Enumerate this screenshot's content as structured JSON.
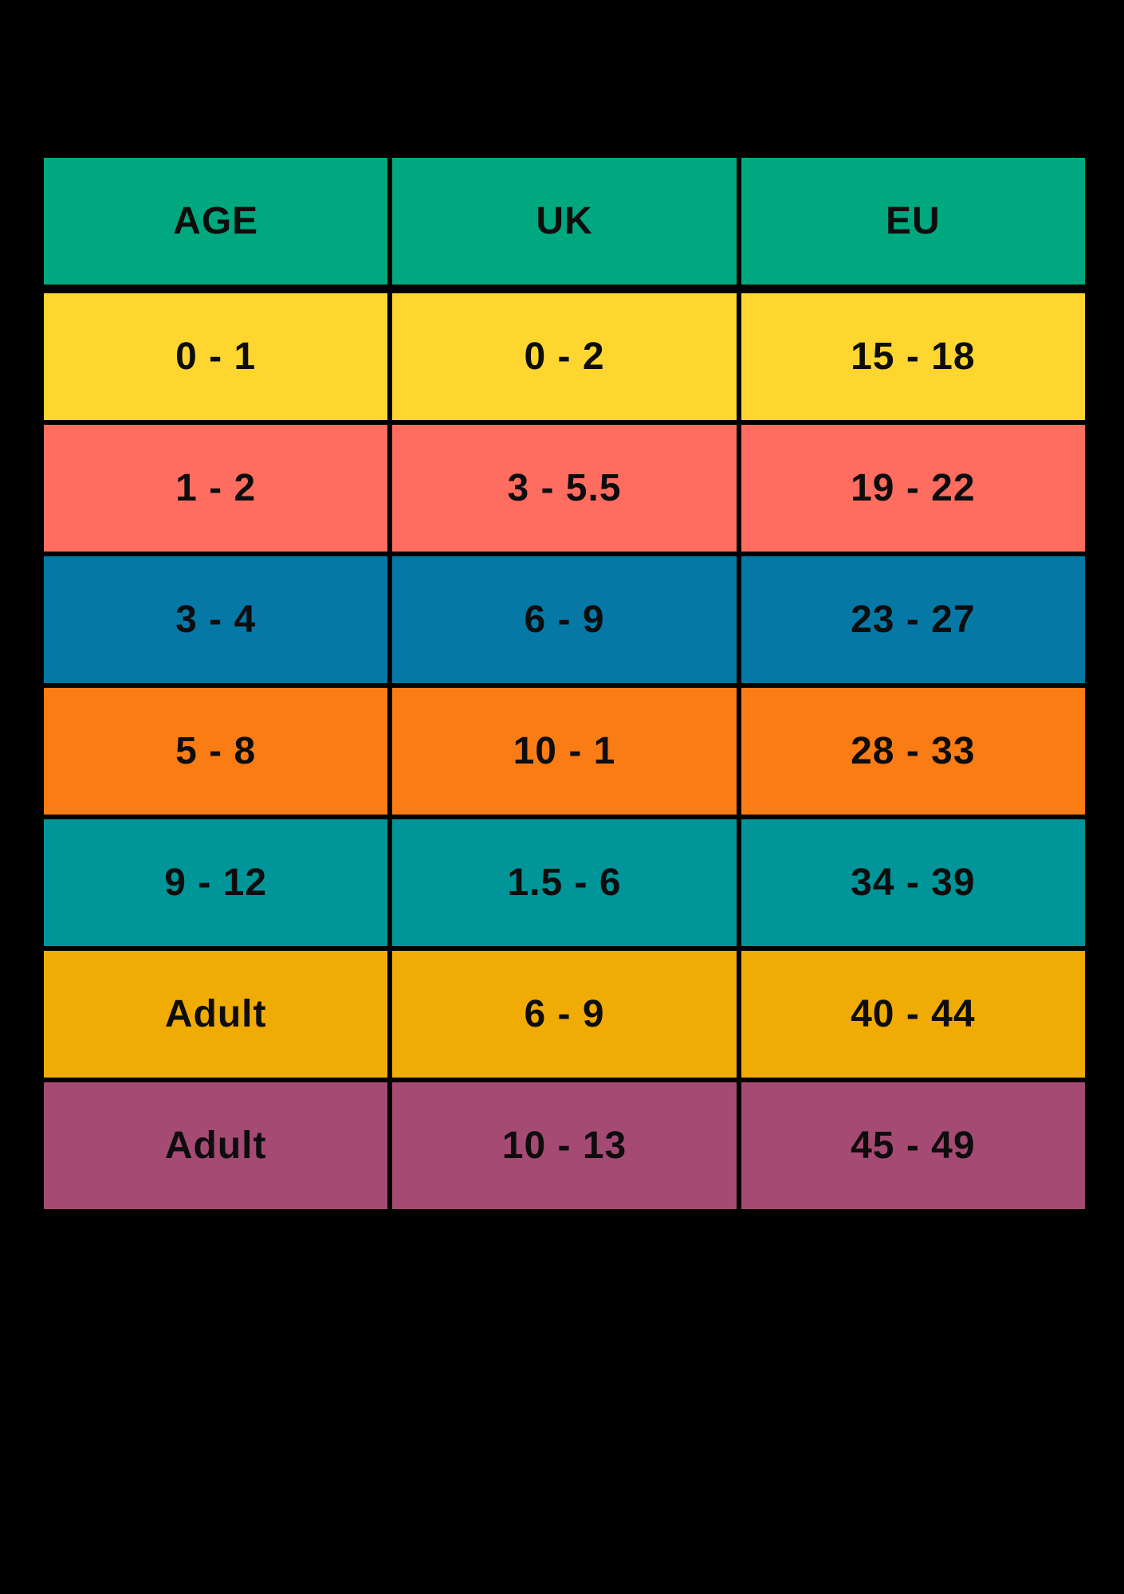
{
  "canvas": {
    "background": "#000000",
    "text_color": "#0D0D0D"
  },
  "table": {
    "header": {
      "background": "#00A87F",
      "columns": [
        "AGE",
        "UK",
        "EU"
      ]
    },
    "rows": [
      {
        "background": "#FFD52F",
        "age": "0 - 1",
        "uk": "0 - 2",
        "eu": "15 - 18"
      },
      {
        "background": "#FF6D60",
        "age": "1 - 2",
        "uk": "3 - 5.5",
        "eu": "19 - 22"
      },
      {
        "background": "#0578A6",
        "age": "3 - 4",
        "uk": "6 - 9",
        "eu": "23 - 27"
      },
      {
        "background": "#FA7C15",
        "age": "5 - 8",
        "uk": "10 - 1",
        "eu": "28 - 33"
      },
      {
        "background": "#009598",
        "age": "9 - 12",
        "uk": "1.5 - 6",
        "eu": "34 - 39"
      },
      {
        "background": "#F0AB04",
        "age": "Adult",
        "uk": "6 - 9",
        "eu": "40 - 44"
      },
      {
        "background": "#A54A73",
        "age": "Adult",
        "uk": "10 - 13",
        "eu": "45 - 49"
      }
    ]
  },
  "chart_data": {
    "type": "table",
    "columns": [
      "AGE",
      "UK",
      "EU"
    ],
    "rows": [
      [
        "0 - 1",
        "0 - 2",
        "15 - 18"
      ],
      [
        "1 - 2",
        "3 - 5.5",
        "19 - 22"
      ],
      [
        "3 - 4",
        "6 - 9",
        "23 - 27"
      ],
      [
        "5 - 8",
        "10 - 1",
        "28 - 33"
      ],
      [
        "9 - 12",
        "1.5 - 6",
        "34 - 39"
      ],
      [
        "Adult",
        "6 - 9",
        "40 - 44"
      ],
      [
        "Adult",
        "10 - 13",
        "45 - 49"
      ]
    ],
    "row_colors": [
      "#FFD52F",
      "#FF6D60",
      "#0578A6",
      "#FA7C15",
      "#009598",
      "#F0AB04",
      "#A54A73"
    ],
    "header_color": "#00A87F",
    "layout": "age-to-shoe-size conversion table, black grid lines on black background"
  }
}
